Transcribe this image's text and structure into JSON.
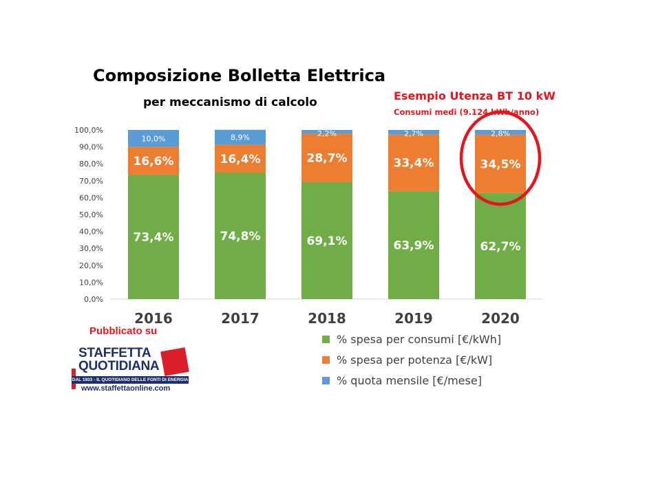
{
  "title": "Composizione Bolletta Elettrica",
  "subtitle": "per meccanismo di calcolo",
  "example": {
    "title": "Esempio Utenza BT 10 kW",
    "subtitle": "Consumi medi (9.124 kWh/anno)"
  },
  "publication": {
    "label": "Pubblicato su",
    "logo_line1": "STAFFETTA",
    "logo_line2": "QUOTIDIANA",
    "tagline": "DAL 1933 - IL QUOTIDIANO DELLE FONTI DI ENERGIA",
    "url": "www.staffettaonline.com"
  },
  "colors": {
    "consumi": "#70ad47",
    "potenza": "#ed7d31",
    "quota": "#5b9bd5",
    "highlight": "#e8141c"
  },
  "chart_data": {
    "type": "bar",
    "stacked": true,
    "categories": [
      "2016",
      "2017",
      "2018",
      "2019",
      "2020"
    ],
    "series": [
      {
        "name": "% spesa per consumi [€/kWh]",
        "values": [
          73.4,
          74.8,
          69.1,
          63.9,
          62.7
        ],
        "labels": [
          "73,4%",
          "74,8%",
          "69,1%",
          "63,9%",
          "62,7%"
        ]
      },
      {
        "name": "% spesa per potenza [€/kW]",
        "values": [
          16.6,
          16.4,
          28.7,
          33.4,
          34.5
        ],
        "labels": [
          "16,6%",
          "16,4%",
          "28,7%",
          "33,4%",
          "34,5%"
        ]
      },
      {
        "name": "% quota mensile [€/mese]",
        "values": [
          10.0,
          8.9,
          2.2,
          2.7,
          2.8
        ],
        "labels": [
          "10,0%",
          "8,9%",
          "2,2%",
          "2,7%",
          "2,8%"
        ]
      }
    ],
    "y_ticks": [
      "0,0%",
      "10,0%",
      "20,0%",
      "30,0%",
      "40,0%",
      "50,0%",
      "60,0%",
      "70,0%",
      "80,0%",
      "90,0%",
      "100,0%"
    ],
    "ylim": [
      0,
      100
    ],
    "grid": false,
    "legend": "bottom-right",
    "highlighted_category": "2020"
  }
}
